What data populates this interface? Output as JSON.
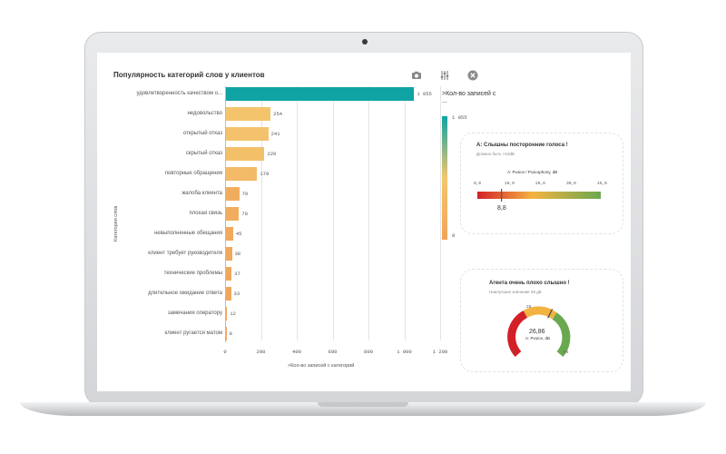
{
  "chart_data": {
    "type": "bar",
    "orientation": "horizontal",
    "title": "Популярность категорий слов у клиентов",
    "ylabel": "Категория слов",
    "xlabel": ">Кол-во записей с категорий",
    "xlim": [
      0,
      1200
    ],
    "xticks": [
      "0",
      "200",
      "400",
      "600",
      "800",
      "1 000",
      "1 200"
    ],
    "categories": [
      "удовлетворенность качеством о...",
      "недовольство",
      "открытый отказ",
      "скрытый отказ",
      "повторные обращения",
      "жалоба клиента",
      "плохая связь",
      "невыполненные обещания",
      "клиент требует руководителя",
      "технические проблемы",
      "длительное ожидание ответа",
      "замечания оператору",
      "клиент ругается матом"
    ],
    "values": [
      1055,
      254,
      241,
      220,
      179,
      79,
      78,
      45,
      38,
      37,
      33,
      12,
      8
    ],
    "value_labels": [
      "1 055",
      "254",
      "241",
      "220",
      "179",
      "79",
      "78",
      "45",
      "38",
      "37",
      "33",
      "12",
      "8"
    ],
    "legend": {
      "title": ">Кол-во записей с ...",
      "max": "1 055",
      "min": "8"
    },
    "colors": {
      "max": "#0fa3a3",
      "mid": "#f4c66e",
      "min": "#f0a45a"
    }
  },
  "toolbar": {
    "icons": [
      "camera-icon",
      "sliders-icon",
      "close-icon"
    ]
  },
  "kpi1": {
    "title": "А: Слышны посторонние голоса !",
    "subtitle": "Должно быть >10dB",
    "scale_label": "А: Pvoice / Pcacophony, dB",
    "ticks": [
      "0,0",
      "10,0",
      "20,0",
      "30,0",
      "45,0"
    ],
    "value": "8,8",
    "value_num": 8.8,
    "range": [
      0,
      45
    ]
  },
  "kpi2": {
    "title": "Агента очень плохо слышно !",
    "subtitle": "Наилучшее значение 28 дБ",
    "value": "26,86",
    "value_num": 26.86,
    "unit_label": "А: Pvoice, dB",
    "min": "0",
    "max": "45",
    "target": "28",
    "range": [
      0,
      45
    ]
  }
}
